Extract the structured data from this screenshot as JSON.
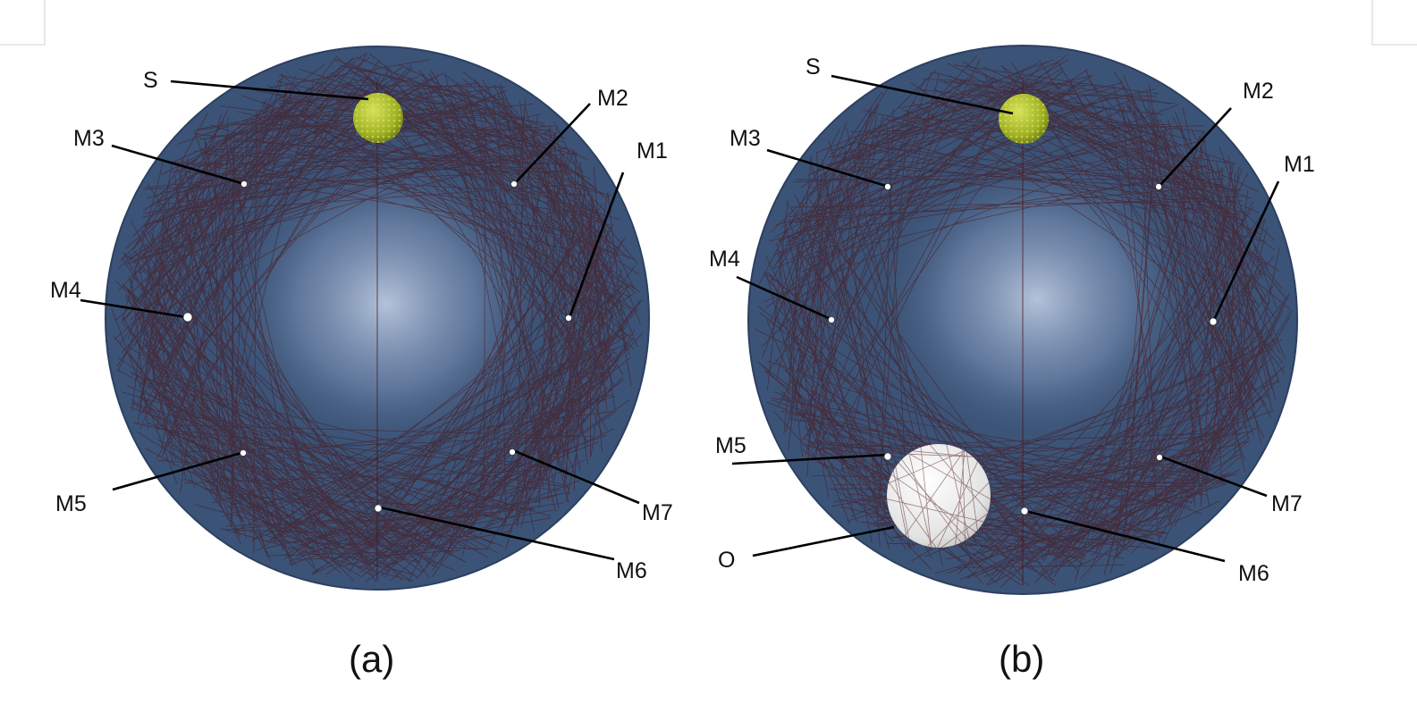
{
  "figure": {
    "panels": [
      {
        "id": "a",
        "caption": "(a)",
        "source_label": "S",
        "microphones": [
          "M1",
          "M2",
          "M3",
          "M4",
          "M5",
          "M6",
          "M7"
        ],
        "obstacle_label": ""
      },
      {
        "id": "b",
        "caption": "(b)",
        "source_label": "S",
        "microphones": [
          "M1",
          "M2",
          "M3",
          "M4",
          "M5",
          "M6",
          "M7"
        ],
        "obstacle_label": "O"
      }
    ],
    "colors": {
      "room": "#3b5377",
      "room_edge": "#2c4060",
      "inner_glow": "#b8c8e0",
      "rays": "#4a1010",
      "source": "#a8b82a",
      "obstacle": "#ececec",
      "leader_lines": "#000000"
    }
  }
}
